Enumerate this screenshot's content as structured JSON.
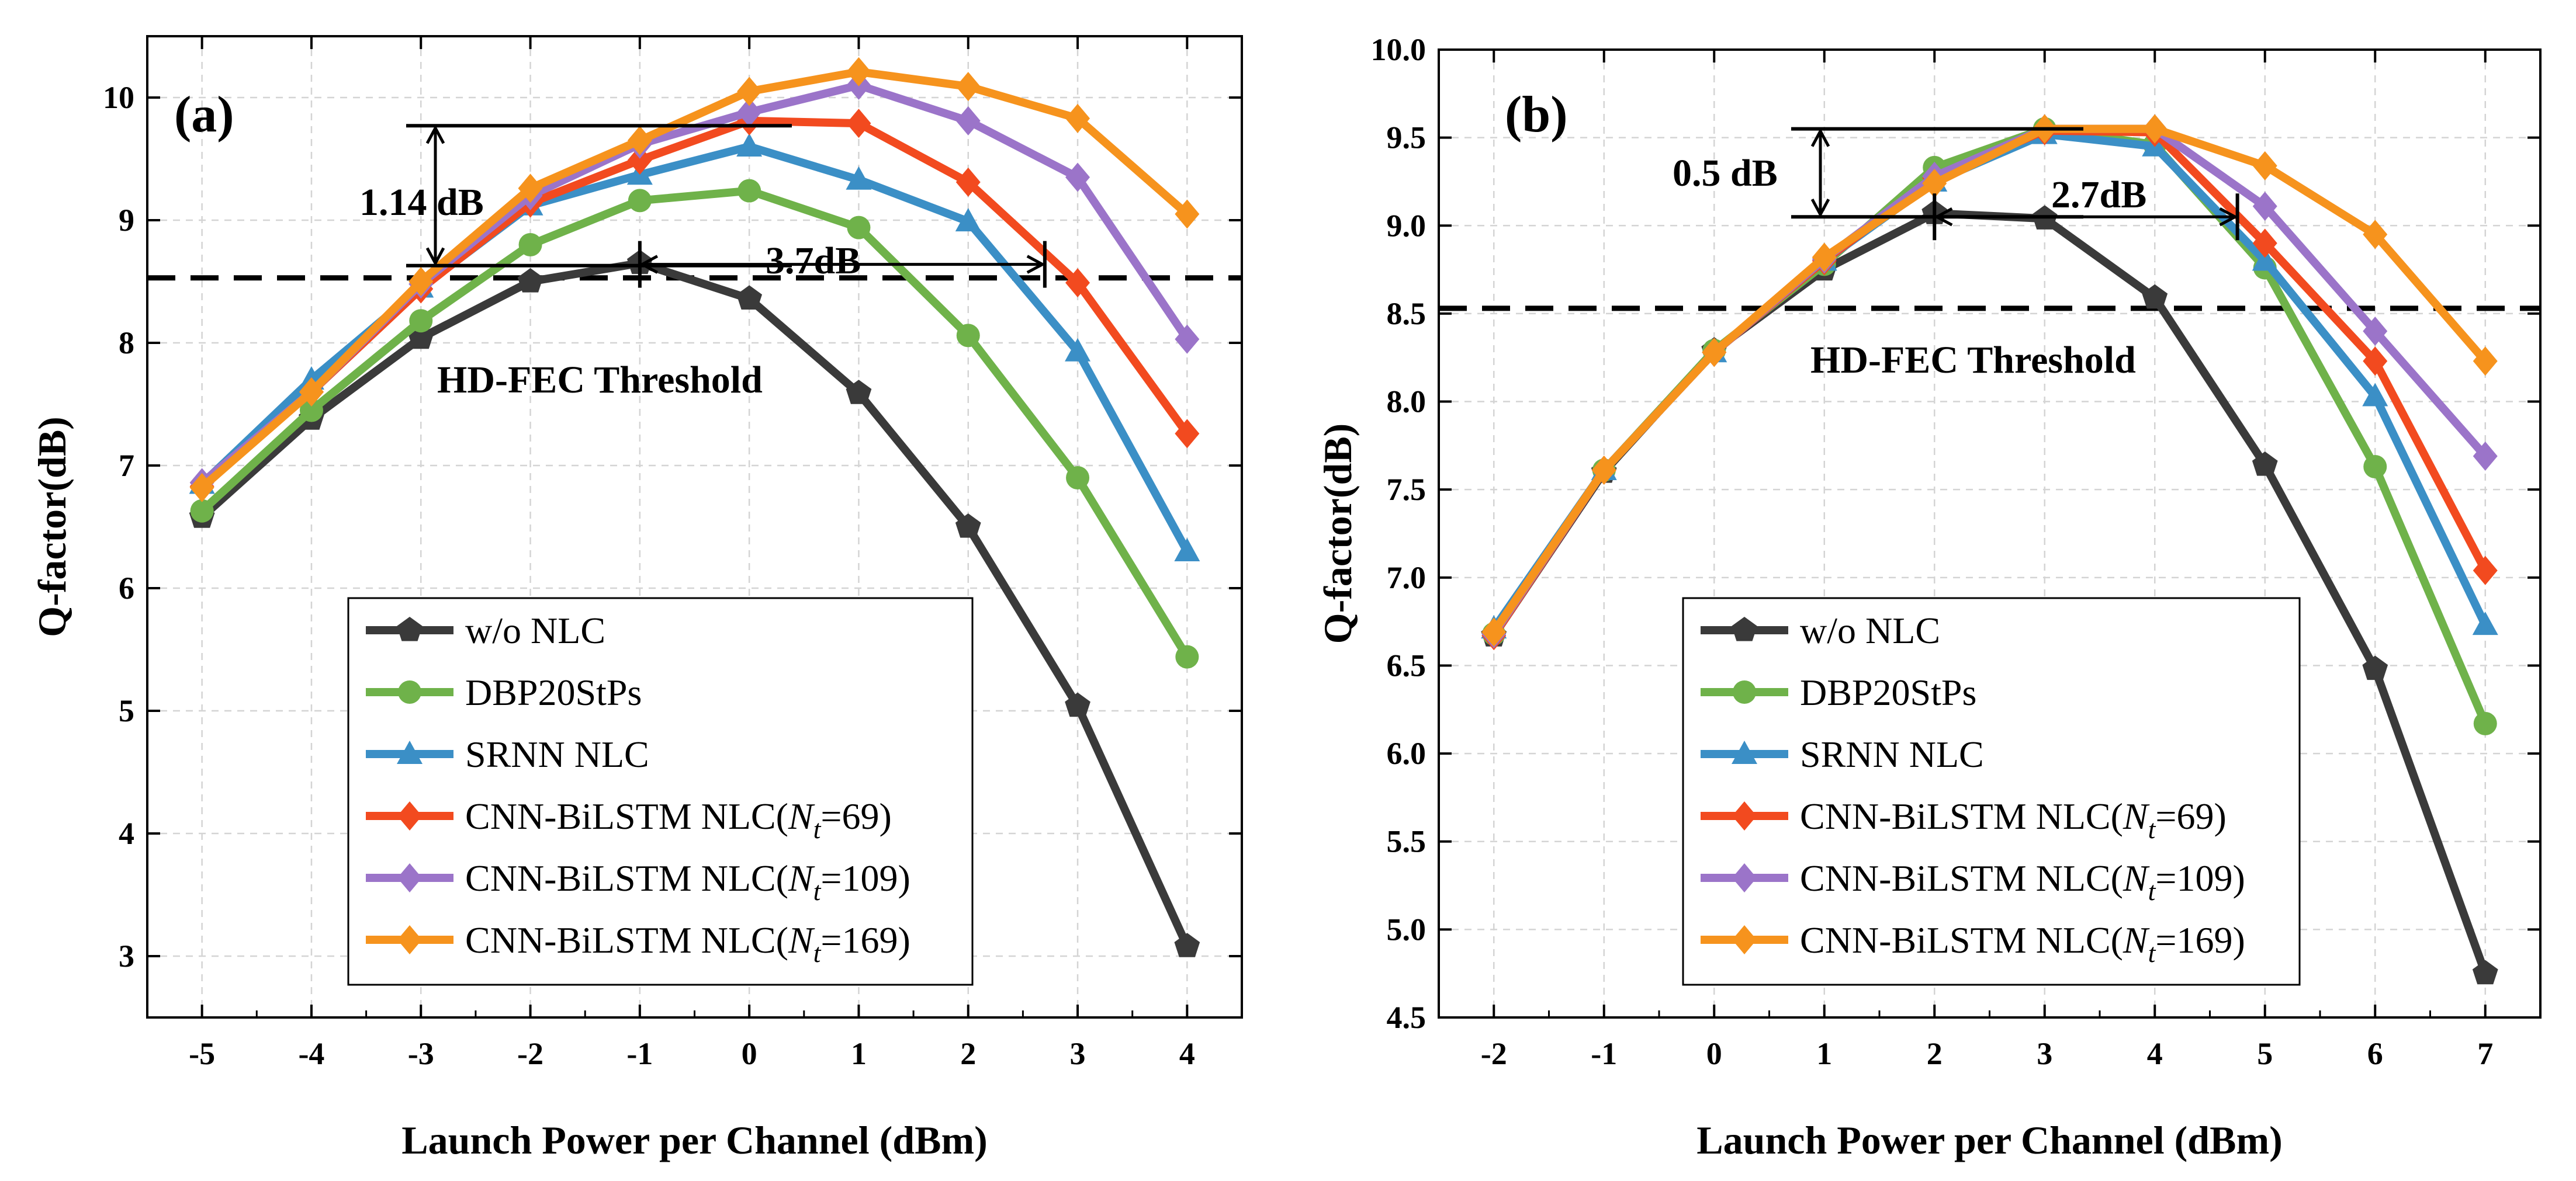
{
  "chart_data": [
    {
      "type": "line",
      "panel_label": "(a)",
      "xlabel": "Launch Power per Channel (dBm)",
      "ylabel": "Q-factor(dB)",
      "xlim": [
        -5.5,
        4.5
      ],
      "ylim": [
        2.5,
        10.5
      ],
      "x": [
        -5,
        -4,
        -3,
        -2,
        -1,
        0,
        1,
        2,
        3,
        4
      ],
      "xticks": [
        "-5",
        "-4",
        "-3",
        "-2",
        "-1",
        "0",
        "1",
        "2",
        "3",
        "4"
      ],
      "yticks": [
        "3",
        "4",
        "5",
        "6",
        "7",
        "8",
        "9",
        "10"
      ],
      "grid": true,
      "threshold": {
        "value": 8.53,
        "label": "HD-FEC Threshold"
      },
      "annotations": {
        "vertical_gap": {
          "label": "1.14 dB",
          "x": -2.85,
          "from": 8.63,
          "to": 9.77
        },
        "horizontal_gap": {
          "label": "3.7dB",
          "from": -1,
          "to": 2.7
        }
      },
      "legend_position": "lower-center",
      "series": [
        {
          "name": "w/o NLC",
          "color": "#3a3a3a",
          "marker": "pentagon",
          "values": [
            6.58,
            7.38,
            8.04,
            8.5,
            8.65,
            8.36,
            7.59,
            6.5,
            5.04,
            3.08
          ]
        },
        {
          "name": "DBP20StPs",
          "color": "#6fb24a",
          "marker": "circle",
          "values": [
            6.63,
            7.45,
            8.18,
            8.8,
            9.16,
            9.24,
            8.94,
            8.06,
            6.9,
            5.44
          ]
        },
        {
          "name": "SRNN NLC",
          "color": "#3b8fc6",
          "marker": "triangle",
          "values": [
            6.85,
            7.7,
            8.45,
            9.12,
            9.37,
            9.6,
            9.33,
            8.99,
            7.93,
            6.3
          ]
        },
        {
          "name": "CNN-BiLSTM NLC(",
          "sub_var": "N",
          "sub_index": "t",
          "sub_rest": "=69)",
          "color": "#f24a1f",
          "marker": "diamond",
          "values": [
            6.83,
            7.6,
            8.44,
            9.14,
            9.49,
            9.81,
            9.79,
            9.31,
            8.49,
            7.26
          ]
        },
        {
          "name": "CNN-BiLSTM NLC(",
          "sub_var": "N",
          "sub_index": "t",
          "sub_rest": "=109)",
          "color": "#9b74c9",
          "marker": "diamond",
          "values": [
            6.86,
            7.6,
            8.48,
            9.2,
            9.62,
            9.88,
            10.1,
            9.81,
            9.35,
            8.03
          ]
        },
        {
          "name": "CNN-BiLSTM NLC(",
          "sub_var": "N",
          "sub_index": "t",
          "sub_rest": "=169)",
          "color": "#f6931d",
          "marker": "diamond",
          "values": [
            6.82,
            7.6,
            8.5,
            9.26,
            9.65,
            10.05,
            10.21,
            10.09,
            9.83,
            9.05
          ]
        }
      ]
    },
    {
      "type": "line",
      "panel_label": "(b)",
      "xlabel": "Launch Power per Channel (dBm)",
      "ylabel": "Q-factor(dB)",
      "xlim": [
        -2.5,
        7.5
      ],
      "ylim": [
        4.5,
        10.0
      ],
      "x": [
        -2,
        -1,
        0,
        1,
        2,
        3,
        4,
        5,
        6,
        7
      ],
      "xticks": [
        "-2",
        "-1",
        "0",
        "1",
        "2",
        "3",
        "4",
        "5",
        "6",
        "7"
      ],
      "yticks": [
        "4.5",
        "5.0",
        "5.5",
        "6.0",
        "6.5",
        "7.0",
        "7.5",
        "8.0",
        "8.5",
        "9.0",
        "9.5",
        "10.0"
      ],
      "grid": true,
      "threshold": {
        "value": 8.53,
        "label": "HD-FEC Threshold"
      },
      "annotations": {
        "vertical_gap": {
          "label": "0.5 dB",
          "x": 1.0,
          "from": 9.05,
          "to": 9.55
        },
        "horizontal_gap": {
          "label": "2.7dB",
          "from": 2.0,
          "to": 4.75
        }
      },
      "legend_position": "lower-center",
      "series": [
        {
          "name": "w/o NLC",
          "color": "#3a3a3a",
          "marker": "pentagon",
          "values": [
            6.67,
            7.6,
            8.29,
            8.75,
            9.07,
            9.04,
            8.59,
            7.64,
            6.48,
            4.75
          ]
        },
        {
          "name": "DBP20StPs",
          "color": "#6fb24a",
          "marker": "circle",
          "values": [
            6.68,
            7.61,
            8.29,
            8.78,
            9.33,
            9.55,
            9.46,
            8.76,
            7.63,
            6.17
          ]
        },
        {
          "name": "SRNN NLC",
          "color": "#3b8fc6",
          "marker": "triangle",
          "values": [
            6.71,
            7.61,
            8.28,
            8.8,
            9.25,
            9.52,
            9.45,
            8.8,
            8.03,
            6.73
          ]
        },
        {
          "name": "CNN-BiLSTM NLC(",
          "sub_var": "N",
          "sub_index": "t",
          "sub_rest": "=69)",
          "color": "#f24a1f",
          "marker": "diamond",
          "values": [
            6.67,
            7.61,
            8.28,
            8.8,
            9.27,
            9.54,
            9.53,
            8.9,
            8.23,
            7.04
          ]
        },
        {
          "name": "CNN-BiLSTM NLC(",
          "sub_var": "N",
          "sub_index": "t",
          "sub_rest": "=109)",
          "color": "#9b74c9",
          "marker": "diamond",
          "values": [
            6.68,
            7.61,
            8.28,
            8.81,
            9.28,
            9.55,
            9.55,
            9.11,
            8.4,
            7.69
          ]
        },
        {
          "name": "CNN-BiLSTM NLC(",
          "sub_var": "N",
          "sub_index": "t",
          "sub_rest": "=169)",
          "color": "#f6931d",
          "marker": "diamond",
          "values": [
            6.69,
            7.61,
            8.28,
            8.82,
            9.24,
            9.55,
            9.55,
            9.34,
            8.95,
            8.23
          ]
        }
      ]
    }
  ]
}
